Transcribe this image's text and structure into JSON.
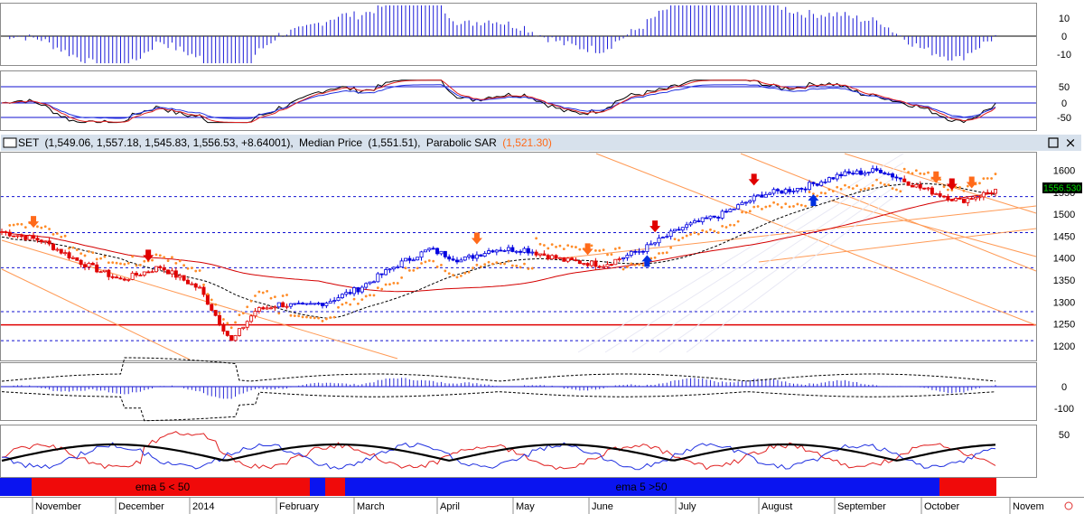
{
  "chart_data": {
    "type": "line",
    "title": "SET",
    "header": {
      "symbol": "SET",
      "ohlc": "(1,549.06, 1,557.18, 1,545.83, 1,556.53, +8.64001),",
      "median_label": "Median Price",
      "median_value": "(1,551.51),",
      "psar_label": "Parabolic SAR",
      "psar_value": "(1,521.30)",
      "last_price": "1556.530"
    },
    "months": [
      "November",
      "December",
      "2014",
      "February",
      "March",
      "April",
      "May",
      "June",
      "July",
      "August",
      "September",
      "October",
      "Novem"
    ],
    "price_panel": {
      "yticks": [
        1200,
        1250,
        1300,
        1350,
        1400,
        1450,
        1500,
        1550,
        1600
      ],
      "ylim": [
        1165,
        1640
      ],
      "support_level": 1248,
      "close_x": [
        0,
        10,
        20,
        30,
        40,
        50,
        58,
        64,
        70,
        76,
        82,
        90,
        100,
        108,
        116,
        124,
        132,
        142,
        152,
        162,
        172,
        182,
        192,
        202,
        212,
        222,
        232,
        242,
        252
      ],
      "close_y": [
        1460,
        1440,
        1390,
        1350,
        1380,
        1330,
        1210,
        1280,
        1295,
        1290,
        1300,
        1330,
        1385,
        1420,
        1395,
        1420,
        1420,
        1395,
        1385,
        1420,
        1470,
        1500,
        1545,
        1560,
        1590,
        1600,
        1560,
        1530,
        1556.53
      ]
    },
    "macd_panel": {
      "yticks": [
        10,
        0,
        -10
      ]
    },
    "stoch_panel": {
      "yticks": [
        50,
        0,
        -50
      ]
    },
    "osc_panel": {
      "yticks": [
        0,
        -100
      ]
    },
    "adx_panel": {
      "yticks": [
        50
      ]
    },
    "trend_band": {
      "label_bear": "ema 5 < 50",
      "label_bull": "ema 5 >50"
    }
  },
  "buttons": {
    "maximize": "□",
    "close": "×"
  },
  "colors": {
    "bull": "#0000e0",
    "bear": "#e00000",
    "sar": "#ff8c28",
    "grid": "#1010d0"
  }
}
